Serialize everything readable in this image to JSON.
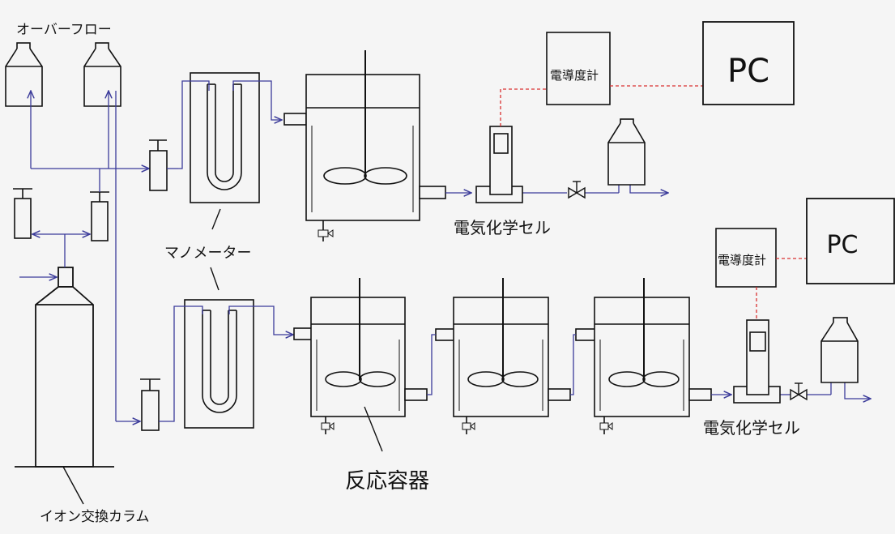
{
  "labels": {
    "overflow": "オーバーフロー",
    "manometer": "マノメーター",
    "reactor": "反応容器",
    "ion_column": "イオン交換カラム",
    "cell_top": "電気化学セル",
    "cell_bottom": "電気化学セル",
    "meter_top": "電導度計",
    "meter_bottom": "電導度計",
    "pc_top": "PC",
    "pc_bottom": "PC"
  },
  "colors": {
    "pipe": "#3b3b9a",
    "signal": "#d93030",
    "line": "#111111",
    "background": "#f5f5f5"
  }
}
